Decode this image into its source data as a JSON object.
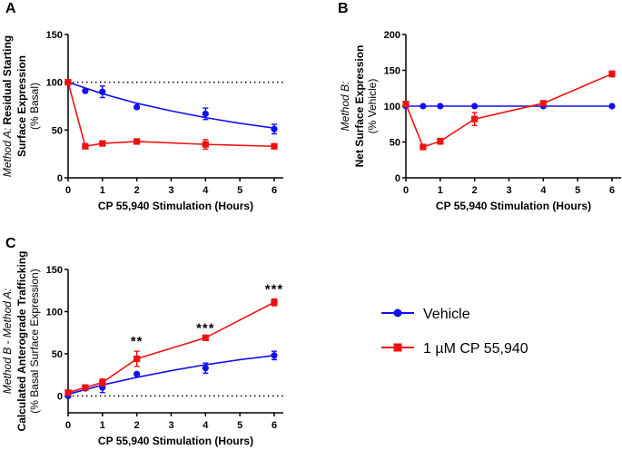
{
  "colors": {
    "vehicle": "#1010f0",
    "cp": "#f01010",
    "axis": "#000000"
  },
  "legend": {
    "placement": "right-center",
    "entries": [
      {
        "label": "Vehicle",
        "marker": "circle",
        "color": "#1010f0"
      },
      {
        "label": "1 µM CP 55,940",
        "marker": "square",
        "color": "#f01010"
      }
    ]
  },
  "chart_data": [
    {
      "panel": "A",
      "type": "line",
      "xlabel": "CP 55,940 Stimulation (Hours)",
      "ylabel_italic": "Method A:",
      "ylabel_bold": " Residual Starting",
      "ylabel_line2": "Surface Expression",
      "ylabel_line3": "(% Basal)",
      "xlim": [
        0,
        6.2
      ],
      "ylim": [
        0,
        150
      ],
      "xticks": [
        0,
        1,
        2,
        3,
        4,
        5,
        6
      ],
      "yticks": [
        0,
        50,
        100,
        150
      ],
      "reference_line": 100,
      "series": [
        {
          "name": "Vehicle",
          "x": [
            0,
            0.5,
            1,
            2,
            4,
            6
          ],
          "y": [
            100,
            91,
            90,
            74,
            67,
            51
          ],
          "err": [
            0,
            0,
            6,
            0,
            6,
            5
          ],
          "fit": {
            "x": [
              0,
              1,
              2,
              3,
              4,
              5,
              6
            ],
            "y": [
              100,
              88,
              78,
              70,
              63,
              57,
              52
            ]
          }
        },
        {
          "name": "1 µM CP 55,940",
          "x": [
            0,
            0.5,
            1,
            2,
            4,
            6
          ],
          "y": [
            100,
            33,
            36,
            38,
            35,
            33
          ],
          "err": [
            0,
            0,
            0,
            0,
            5,
            0
          ]
        }
      ]
    },
    {
      "panel": "B",
      "type": "line",
      "xlabel": "CP 55,940 Stimulation (Hours)",
      "ylabel_italic": "Method B:",
      "ylabel_bold": "",
      "ylabel_line2": "Net Surface Expression",
      "ylabel_line3": "(% Vehicle)",
      "xlim": [
        0,
        6.2
      ],
      "ylim": [
        0,
        200
      ],
      "xticks": [
        0,
        1,
        2,
        3,
        4,
        5,
        6
      ],
      "yticks": [
        0,
        50,
        100,
        150,
        200
      ],
      "series": [
        {
          "name": "Vehicle",
          "x": [
            0,
            0.5,
            1,
            2,
            4,
            6
          ],
          "y": [
            100,
            100,
            100,
            100,
            100,
            100
          ],
          "err": [
            0,
            0,
            0,
            0,
            0,
            0
          ]
        },
        {
          "name": "1 µM CP 55,940",
          "x": [
            0,
            0.5,
            1,
            2,
            4,
            6
          ],
          "y": [
            103,
            43,
            51,
            82,
            104,
            145
          ],
          "err": [
            0,
            0,
            4,
            9,
            0,
            4
          ]
        }
      ]
    },
    {
      "panel": "C",
      "type": "line",
      "xlabel": "CP 55,940 Stimulation (Hours)",
      "ylabel_italic": "Method B - Method A:",
      "ylabel_bold": "",
      "ylabel_line2": "Calculated Anterograde Trafficking",
      "ylabel_line3": "(% Basal Surface Expression)",
      "xlim": [
        0,
        6.2
      ],
      "ylim": [
        -20,
        150
      ],
      "xticks": [
        0,
        1,
        2,
        3,
        4,
        5,
        6
      ],
      "yticks": [
        0,
        50,
        100,
        150
      ],
      "reference_line": 0,
      "annotations": [
        {
          "x": 2,
          "text": "**"
        },
        {
          "x": 4,
          "text": "***"
        },
        {
          "x": 6,
          "text": "***"
        }
      ],
      "series": [
        {
          "name": "Vehicle",
          "x": [
            0,
            0.5,
            1,
            2,
            4,
            6
          ],
          "y": [
            0,
            9,
            10,
            26,
            33,
            48
          ],
          "err": [
            0,
            0,
            6,
            0,
            6,
            5
          ],
          "fit": {
            "x": [
              0,
              1,
              2,
              3,
              4,
              5,
              6
            ],
            "y": [
              2,
              13,
              22,
              30,
              37,
              43,
              48
            ]
          }
        },
        {
          "name": "1 µM CP 55,940",
          "x": [
            0,
            0.5,
            1,
            2,
            4,
            6
          ],
          "y": [
            4,
            10,
            16,
            44,
            69,
            111
          ],
          "err": [
            0,
            0,
            4,
            9,
            0,
            4
          ]
        }
      ]
    }
  ]
}
